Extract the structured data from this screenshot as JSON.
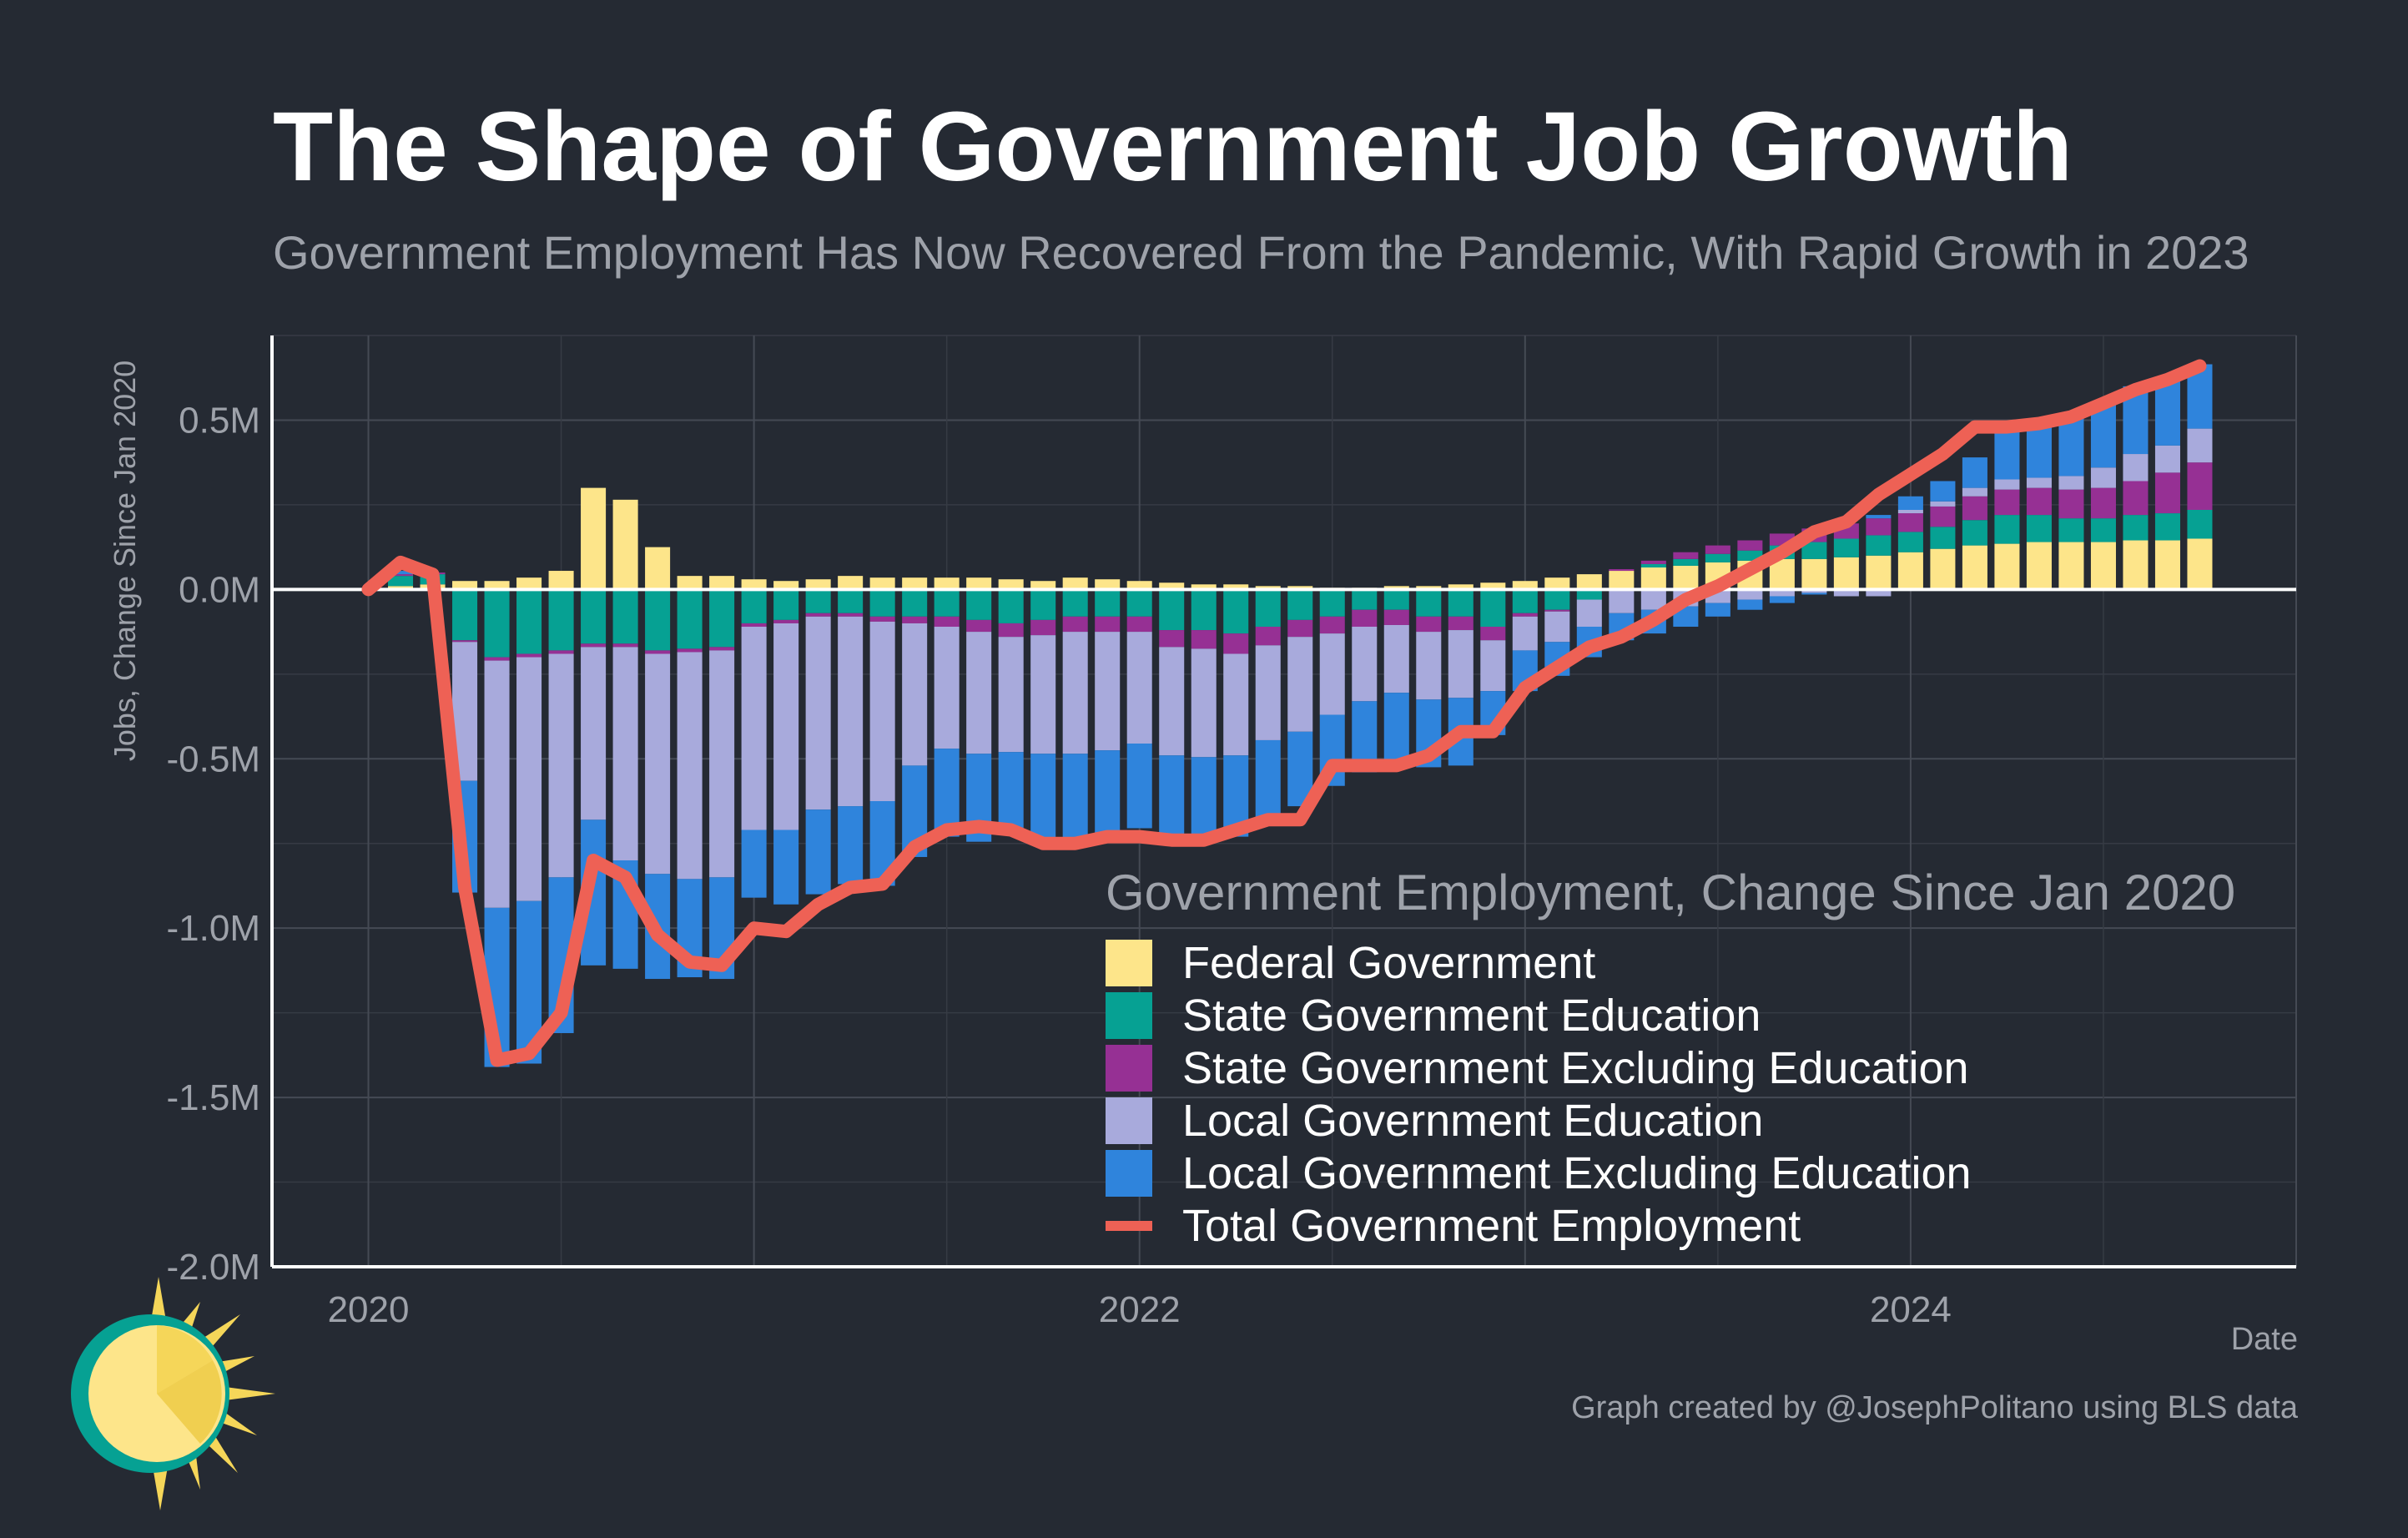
{
  "title": "The Shape of Government Job Growth",
  "subtitle": "Government Employment Has Now Recovered From the Pandemic, With Rapid Growth in 2023",
  "caption": "Graph created by @JosephPolitano using BLS data",
  "logo_icon": "sun-logo-icon",
  "colors": {
    "background": "#252a33",
    "federal": "#fde58a",
    "state_edu": "#06a193",
    "state_ex": "#963094",
    "local_edu": "#a8aadc",
    "local_ex": "#2f84dc",
    "total": "#ee6155"
  },
  "chart_data": {
    "type": "bar",
    "stacked": true,
    "x_unit": "month",
    "xlabel": "Date",
    "ylabel": "Jobs, Change Since Jan 2020",
    "ylim": [
      -2000000,
      750000
    ],
    "yticks": [
      -2000000,
      -1500000,
      -1000000,
      -500000,
      0,
      500000
    ],
    "ytick_labels": [
      "-2.0M",
      "-1.5M",
      "-1.0M",
      "-0.5M",
      "0.0M",
      "0.5M"
    ],
    "xticks": [
      "2020-01",
      "2022-01",
      "2024-01"
    ],
    "xtick_labels": [
      "2020",
      "2022",
      "2024"
    ],
    "xlim": [
      "2019-10",
      "2025-01"
    ],
    "grid": true,
    "legend_title": "Government Employment, Change Since Jan 2020",
    "legend_position": "bottom-right",
    "legend_entries": [
      "Federal Government",
      "State Government Education",
      "State Government Excluding Education",
      "Local Government Education",
      "Local Government Excluding Education",
      "Total Government Employment"
    ],
    "x": [
      "2020-01",
      "2020-02",
      "2020-03",
      "2020-04",
      "2020-05",
      "2020-06",
      "2020-07",
      "2020-08",
      "2020-09",
      "2020-10",
      "2020-11",
      "2020-12",
      "2021-01",
      "2021-02",
      "2021-03",
      "2021-04",
      "2021-05",
      "2021-06",
      "2021-07",
      "2021-08",
      "2021-09",
      "2021-10",
      "2021-11",
      "2021-12",
      "2022-01",
      "2022-02",
      "2022-03",
      "2022-04",
      "2022-05",
      "2022-06",
      "2022-07",
      "2022-08",
      "2022-09",
      "2022-10",
      "2022-11",
      "2022-12",
      "2023-01",
      "2023-02",
      "2023-03",
      "2023-04",
      "2023-05",
      "2023-06",
      "2023-07",
      "2023-08",
      "2023-09",
      "2023-10",
      "2023-11",
      "2023-12",
      "2024-01",
      "2024-02",
      "2024-03",
      "2024-04",
      "2024-05",
      "2024-06",
      "2024-07",
      "2024-08",
      "2024-09",
      "2024-10"
    ],
    "series": [
      {
        "name": "Federal Government",
        "values": [
          0,
          10000,
          15000,
          25000,
          25000,
          35000,
          55000,
          300000,
          265000,
          125000,
          40000,
          40000,
          30000,
          25000,
          30000,
          40000,
          35000,
          35000,
          35000,
          35000,
          30000,
          25000,
          35000,
          30000,
          25000,
          20000,
          15000,
          15000,
          10000,
          10000,
          5000,
          5000,
          10000,
          10000,
          15000,
          20000,
          25000,
          35000,
          45000,
          55000,
          65000,
          70000,
          80000,
          85000,
          90000,
          90000,
          95000,
          100000,
          110000,
          120000,
          130000,
          135000,
          140000,
          140000,
          140000,
          145000,
          145000,
          150000
        ]
      },
      {
        "name": "State Government Education",
        "values": [
          0,
          30000,
          30000,
          -150000,
          -200000,
          -190000,
          -180000,
          -160000,
          -160000,
          -180000,
          -175000,
          -170000,
          -100000,
          -90000,
          -70000,
          -70000,
          -80000,
          -80000,
          -80000,
          -90000,
          -100000,
          -90000,
          -80000,
          -80000,
          -80000,
          -120000,
          -120000,
          -130000,
          -110000,
          -90000,
          -80000,
          -60000,
          -60000,
          -80000,
          -80000,
          -110000,
          -70000,
          -60000,
          -30000,
          0,
          10000,
          20000,
          25000,
          30000,
          40000,
          50000,
          55000,
          60000,
          60000,
          65000,
          75000,
          85000,
          80000,
          70000,
          70000,
          75000,
          80000,
          85000
        ]
      },
      {
        "name": "State Government Excluding Education",
        "values": [
          0,
          5000,
          5000,
          -5000,
          -10000,
          -10000,
          -10000,
          -10000,
          -10000,
          -10000,
          -10000,
          -10000,
          -10000,
          -10000,
          -10000,
          -10000,
          -15000,
          -20000,
          -30000,
          -35000,
          -40000,
          -45000,
          -45000,
          -45000,
          -45000,
          -50000,
          -55000,
          -60000,
          -55000,
          -50000,
          -50000,
          -50000,
          -45000,
          -45000,
          -40000,
          -40000,
          -10000,
          -5000,
          0,
          5000,
          10000,
          20000,
          25000,
          30000,
          35000,
          40000,
          45000,
          50000,
          55000,
          60000,
          70000,
          75000,
          80000,
          85000,
          90000,
          100000,
          120000,
          140000
        ]
      },
      {
        "name": "Local Government Education",
        "values": [
          0,
          0,
          0,
          -410000,
          -730000,
          -720000,
          -660000,
          -510000,
          -630000,
          -650000,
          -670000,
          -670000,
          -600000,
          -610000,
          -570000,
          -560000,
          -530000,
          -420000,
          -360000,
          -360000,
          -340000,
          -350000,
          -360000,
          -350000,
          -330000,
          -320000,
          -320000,
          -300000,
          -280000,
          -280000,
          -240000,
          -220000,
          -200000,
          -200000,
          -200000,
          -150000,
          -100000,
          -90000,
          -80000,
          -70000,
          -60000,
          -50000,
          -40000,
          -30000,
          -20000,
          -10000,
          -20000,
          -20000,
          10000,
          15000,
          25000,
          30000,
          30000,
          40000,
          60000,
          80000,
          80000,
          100000
        ]
      },
      {
        "name": "Local Government Excluding Education",
        "values": [
          0,
          10000,
          0,
          -330000,
          -470000,
          -480000,
          -460000,
          -430000,
          -320000,
          -310000,
          -290000,
          -300000,
          -200000,
          -220000,
          -250000,
          -230000,
          -250000,
          -270000,
          -260000,
          -260000,
          -230000,
          -260000,
          -260000,
          -250000,
          -250000,
          -250000,
          -250000,
          -240000,
          -230000,
          -220000,
          -210000,
          -210000,
          -210000,
          -200000,
          -200000,
          -130000,
          -120000,
          -100000,
          -90000,
          -80000,
          -70000,
          -60000,
          -40000,
          -30000,
          -20000,
          -5000,
          0,
          10000,
          40000,
          60000,
          90000,
          160000,
          170000,
          180000,
          190000,
          200000,
          190000,
          190000
        ]
      },
      {
        "name": "Total Government Employment",
        "type": "line",
        "values": [
          0,
          80000,
          45000,
          -880000,
          -1390000,
          -1370000,
          -1250000,
          -800000,
          -850000,
          -1020000,
          -1100000,
          -1110000,
          -1000000,
          -1010000,
          -930000,
          -880000,
          -870000,
          -760000,
          -710000,
          -700000,
          -710000,
          -750000,
          -750000,
          -730000,
          -730000,
          -740000,
          -740000,
          -710000,
          -680000,
          -680000,
          -520000,
          -520000,
          -520000,
          -490000,
          -420000,
          -420000,
          -290000,
          -230000,
          -170000,
          -140000,
          -90000,
          -30000,
          10000,
          60000,
          110000,
          170000,
          200000,
          280000,
          340000,
          400000,
          480000,
          480000,
          490000,
          510000,
          550000,
          590000,
          620000,
          660000
        ]
      }
    ]
  }
}
